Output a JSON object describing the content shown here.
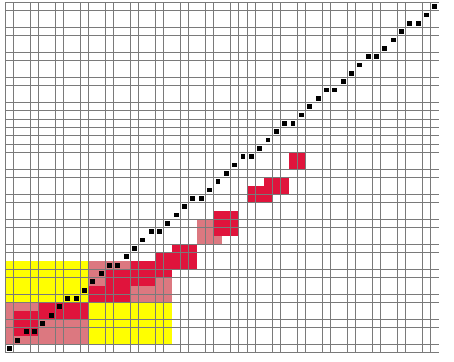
{
  "colors": {
    "background": "#ffffff",
    "grid_line": "#7a7a7a",
    "diagonal": "#000000",
    "red": "#e0143c",
    "pink": "#dc7880",
    "yellow": "#ffff00"
  },
  "grid": {
    "cols": 52,
    "rows": 42
  },
  "diagonal": {
    "length": 52
  },
  "blocks": [
    {
      "name": "yellow-block-top-left",
      "color": "yellow",
      "col": 0,
      "row": 31,
      "w": 10,
      "h": 5
    },
    {
      "name": "yellow-block-bottom-right",
      "color": "yellow",
      "col": 10,
      "row": 36,
      "w": 10,
      "h": 5
    },
    {
      "name": "pink-block-bottom-left",
      "color": "pink",
      "col": 0,
      "row": 36,
      "w": 10,
      "h": 5
    },
    {
      "name": "pink-block-top-right",
      "color": "pink",
      "col": 10,
      "row": 31,
      "w": 10,
      "h": 5
    },
    {
      "name": "red-block-1",
      "color": "red",
      "col": 1,
      "row": 37,
      "w": 3,
      "h": 3
    },
    {
      "name": "red-block-2",
      "color": "red",
      "col": 4,
      "row": 36,
      "w": 3,
      "h": 2
    },
    {
      "name": "red-block-3",
      "color": "red",
      "col": 6,
      "row": 36,
      "w": 4,
      "h": 2
    },
    {
      "name": "red-block-4",
      "color": "red",
      "col": 10,
      "row": 34,
      "w": 3,
      "h": 2
    },
    {
      "name": "red-block-5",
      "color": "red",
      "col": 12,
      "row": 32,
      "w": 3,
      "h": 4
    },
    {
      "name": "red-block-6",
      "color": "red",
      "col": 15,
      "row": 31,
      "w": 3,
      "h": 3
    },
    {
      "name": "red-block-7",
      "color": "red",
      "col": 18,
      "row": 30,
      "w": 2,
      "h": 3
    },
    {
      "name": "red-block-8",
      "color": "red",
      "col": 20,
      "row": 29,
      "w": 3,
      "h": 3
    },
    {
      "name": "pink-block-9",
      "color": "pink",
      "col": 23,
      "row": 26,
      "w": 3,
      "h": 3
    },
    {
      "name": "red-block-10",
      "color": "red",
      "col": 25,
      "row": 25,
      "w": 3,
      "h": 3
    },
    {
      "name": "red-block-11",
      "color": "red",
      "col": 29,
      "row": 22,
      "w": 3,
      "h": 2
    },
    {
      "name": "red-block-12",
      "color": "red",
      "col": 31,
      "row": 21,
      "w": 3,
      "h": 2
    },
    {
      "name": "red-block-13",
      "color": "red",
      "col": 34,
      "row": 18,
      "w": 2,
      "h": 2
    }
  ]
}
